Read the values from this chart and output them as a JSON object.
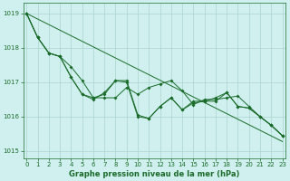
{
  "title": "Graphe pression niveau de la mer (hPa)",
  "bg_color": "#cff0ee",
  "grid_color": "#aad4cc",
  "line_color": "#1a6b2a",
  "x_ticks": [
    0,
    1,
    2,
    3,
    4,
    5,
    6,
    7,
    8,
    9,
    10,
    11,
    12,
    13,
    14,
    15,
    16,
    17,
    18,
    19,
    20,
    21,
    22,
    23
  ],
  "ylim": [
    1014.8,
    1019.3
  ],
  "yticks": [
    1015,
    1016,
    1017,
    1018,
    1019
  ],
  "series2": [
    1019.0,
    1018.3,
    1017.85,
    1017.75,
    1017.15,
    1016.65,
    1016.55,
    1016.65,
    1017.05,
    1017.0,
    1016.0,
    1015.95,
    1016.3,
    1016.55,
    1016.2,
    1016.45,
    1016.45,
    1016.55,
    1016.7,
    1016.3,
    1016.25,
    1016.0,
    1015.75,
    1015.45
  ],
  "series3": [
    1019.0,
    1018.3,
    1017.85,
    1017.75,
    1017.45,
    1017.05,
    1016.55,
    1016.55,
    1016.55,
    1016.85,
    1016.65,
    1016.85,
    1016.95,
    1017.05,
    1016.75,
    1016.35,
    1016.5,
    1016.5,
    1016.55,
    1016.6,
    1016.3,
    1016.0,
    1015.75,
    1015.45
  ],
  "series4": [
    1019.0,
    1018.3,
    1017.85,
    1017.75,
    1017.15,
    1016.65,
    1016.5,
    1016.7,
    1017.05,
    1017.05,
    1016.05,
    1015.95,
    1016.3,
    1016.55,
    1016.2,
    1016.4,
    1016.45,
    1016.45,
    1016.7,
    1016.3,
    1016.25,
    1016.0,
    1015.75,
    1015.45
  ],
  "tick_fontsize": 5.0,
  "label_fontsize": 6.0
}
